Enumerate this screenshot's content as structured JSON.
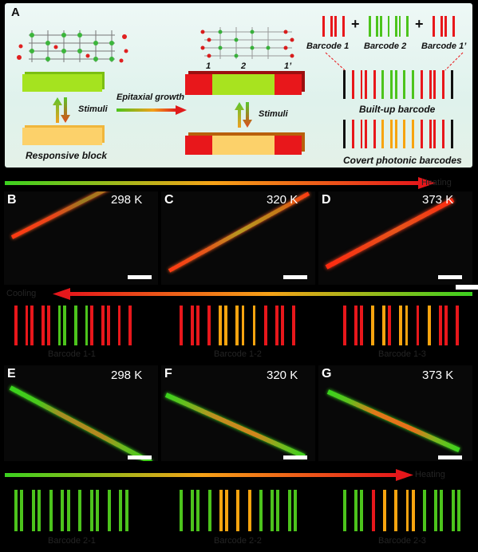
{
  "panel_a": {
    "label": "A",
    "stimuli_left": "Stimuli",
    "stimuli_right": "Stimuli",
    "responsive_block": "Responsive block",
    "epitaxial_growth": "Epitaxial growth",
    "segment_1": "1",
    "segment_2": "2",
    "segment_1p": "1’",
    "barcode_1": "Barcode 1",
    "barcode_2": "Barcode 2",
    "barcode_1p": "Barcode 1’",
    "plus": "+",
    "built_up": "Built-up barcode",
    "covert": "Covert photonic barcodes"
  },
  "row1": {
    "panels": [
      {
        "label": "B",
        "temp": "298 K"
      },
      {
        "label": "C",
        "temp": "320 K"
      },
      {
        "label": "D",
        "temp": "373 K"
      }
    ],
    "arrow_text": "Heating"
  },
  "row2": {
    "arrow_text": "Cooling",
    "barcodes": [
      "Barcode 1-1",
      "Barcode 1-2",
      "Barcode 1-3"
    ]
  },
  "row3": {
    "panels": [
      {
        "label": "E",
        "temp": "298 K"
      },
      {
        "label": "F",
        "temp": "320 K"
      },
      {
        "label": "G",
        "temp": "373 K"
      }
    ],
    "arrow_text": "Heating"
  },
  "row4": {
    "barcodes": [
      "Barcode 2-1",
      "Barcode 2-2",
      "Barcode 2-3"
    ]
  },
  "colors": {
    "red": "#e8171b",
    "green": "#4cc41c",
    "orange": "#f7a40f",
    "yellow_block": "#fcd16a",
    "light_green": "#9be01a"
  }
}
